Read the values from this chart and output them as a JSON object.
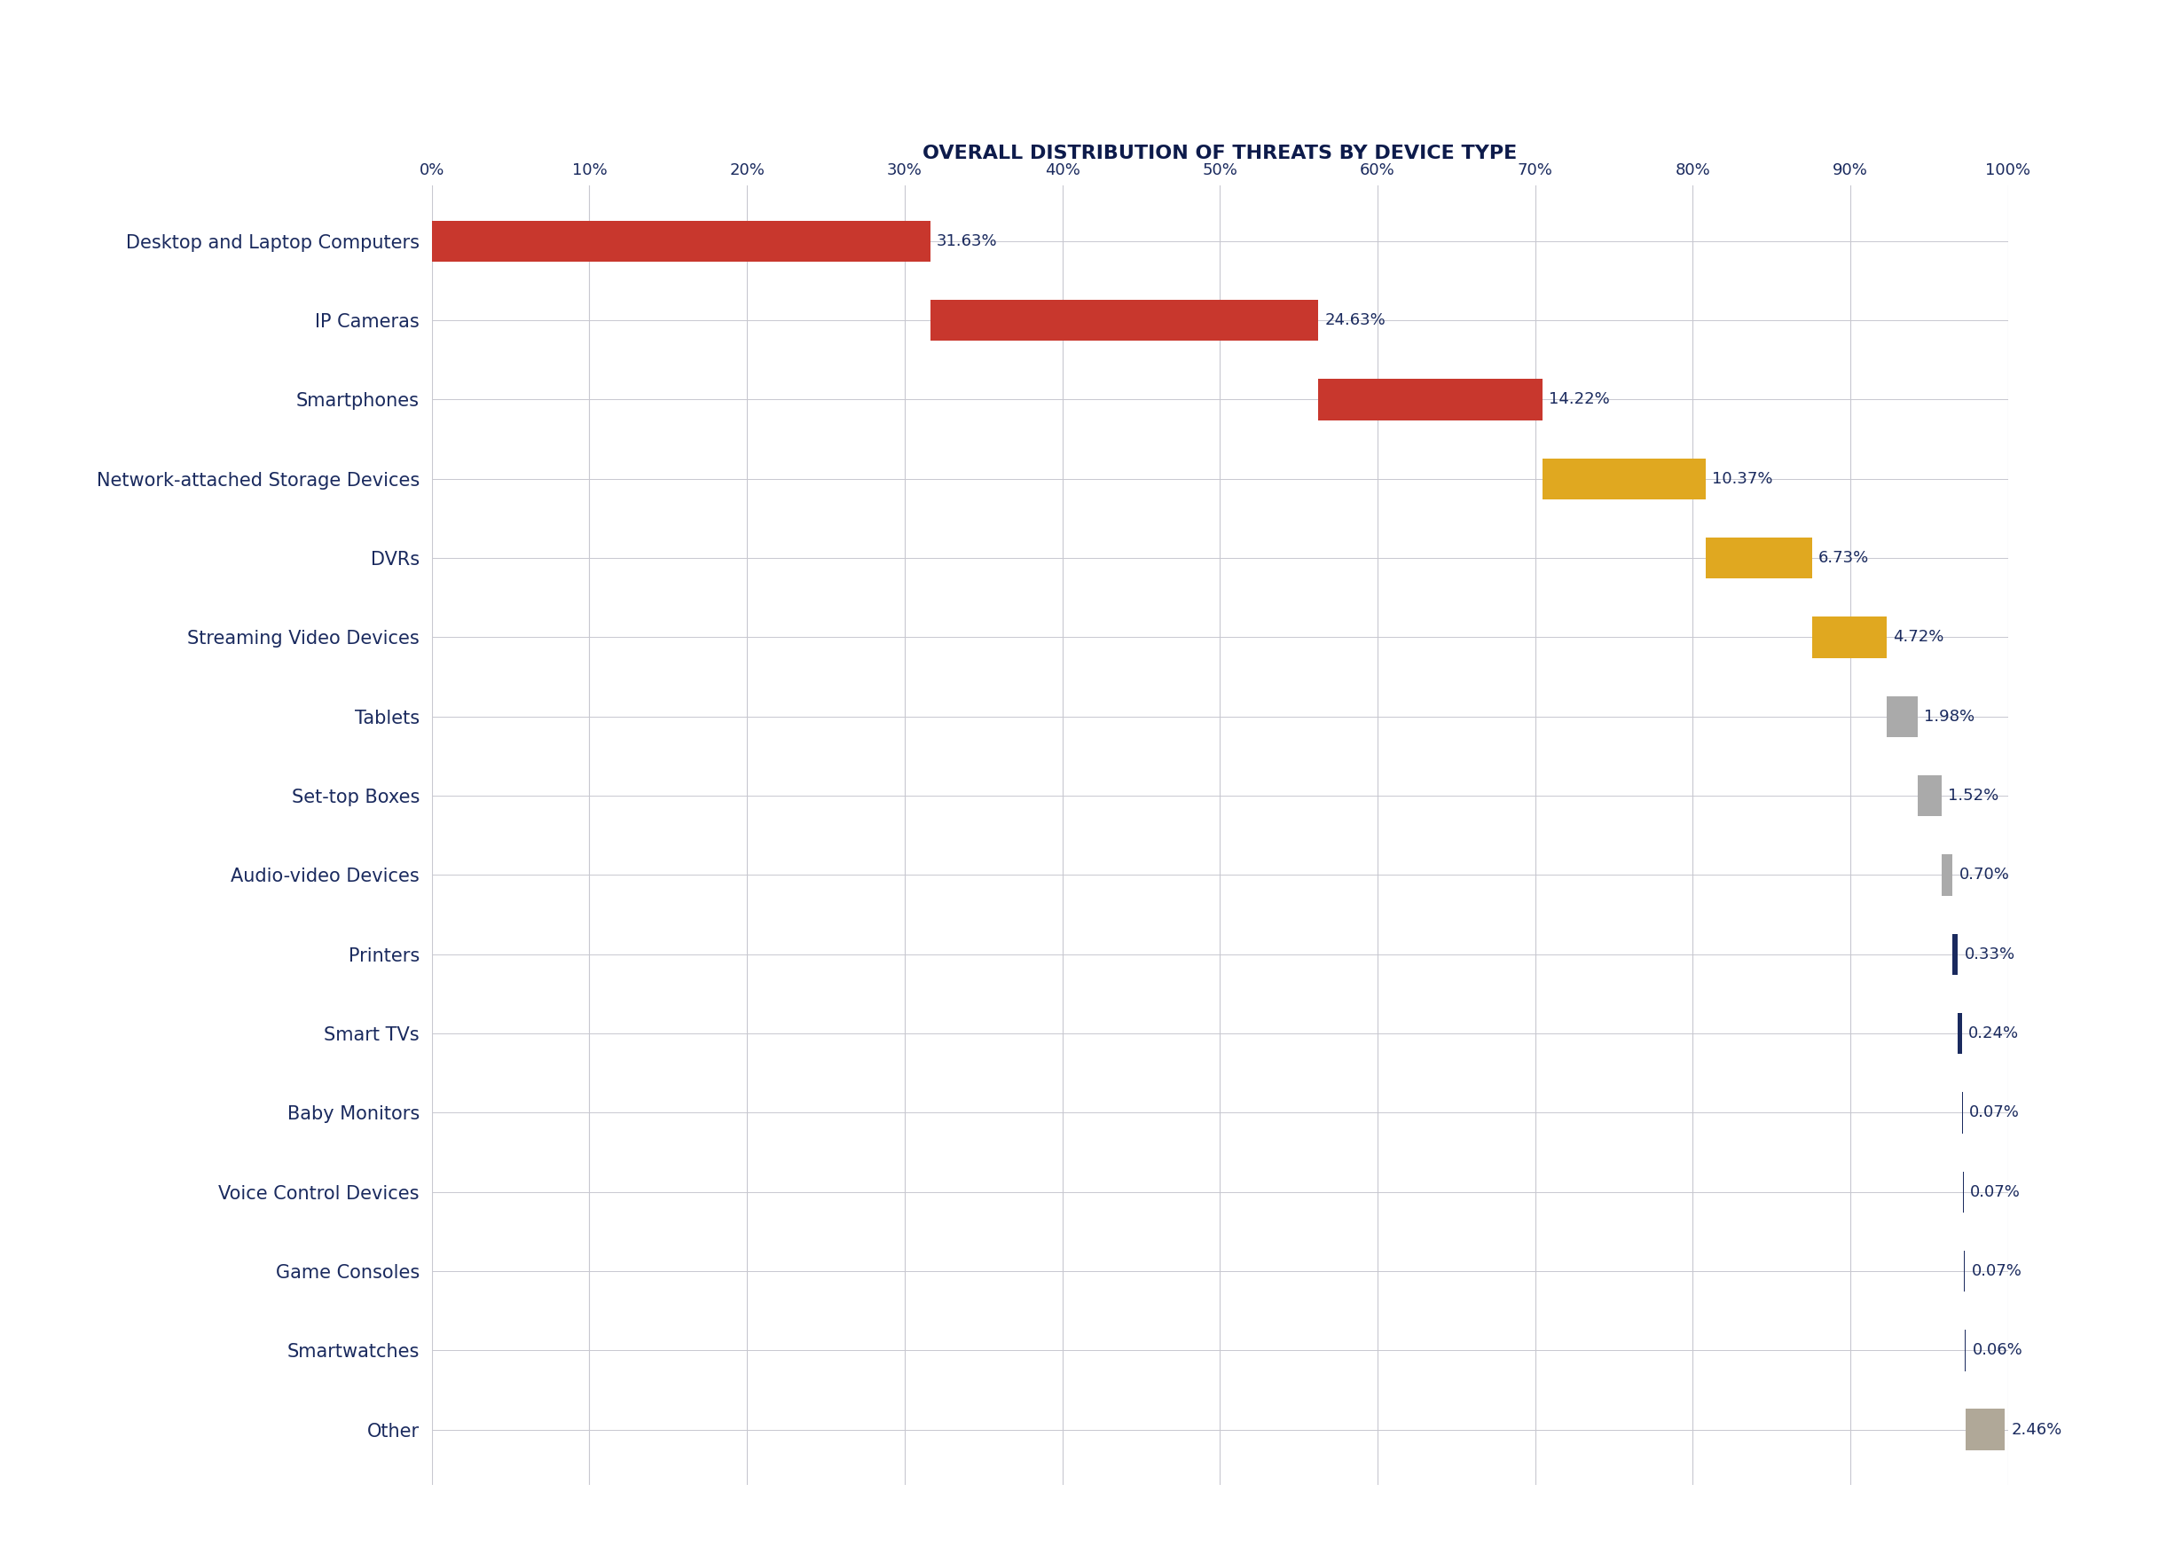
{
  "title": "OVERALL DISTRIBUTION OF THREATS BY DEVICE TYPE",
  "categories": [
    "Desktop and Laptop Computers",
    "IP Cameras",
    "Smartphones",
    "Network-attached Storage Devices",
    "DVRs",
    "Streaming Video Devices",
    "Tablets",
    "Set-top Boxes",
    "Audio-video Devices",
    "Printers",
    "Smart TVs",
    "Baby Monitors",
    "Voice Control Devices",
    "Game Consoles",
    "Smartwatches",
    "Other"
  ],
  "values": [
    31.63,
    24.63,
    14.22,
    10.37,
    6.73,
    4.72,
    1.98,
    1.52,
    0.7,
    0.33,
    0.24,
    0.07,
    0.07,
    0.07,
    0.06,
    2.46
  ],
  "bar_colors": [
    "#c8372d",
    "#c8372d",
    "#c8372d",
    "#e0a820",
    "#e0a820",
    "#e0a820",
    "#aaaaaa",
    "#aaaaaa",
    "#aaaaaa",
    "#1a2a5e",
    "#1a2a5e",
    "#1a2a5e",
    "#1a2a5e",
    "#1a2a5e",
    "#1a2a5e",
    "#b0a898"
  ],
  "label_color": "#1a2a5e",
  "title_color": "#0d1b4b",
  "background_color": "#ffffff",
  "xlim": [
    0,
    100
  ],
  "xtick_values": [
    0,
    10,
    20,
    30,
    40,
    50,
    60,
    70,
    80,
    90,
    100
  ],
  "grid_color": "#c8c8d0",
  "bar_height": 0.52
}
